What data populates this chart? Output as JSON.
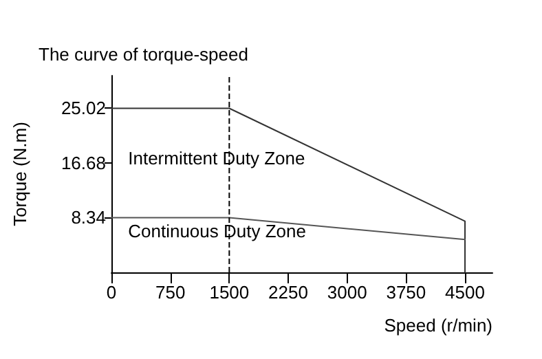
{
  "chart_data": {
    "type": "line",
    "title": "The curve of torque-speed",
    "xlabel": "Speed (r/min)",
    "ylabel": "Torque (N.m)",
    "series": [
      {
        "x": [
          0,
          1500,
          4500,
          4500
        ],
        "values": [
          25.02,
          25.02,
          7.8,
          0
        ],
        "color": "#333333"
      },
      {
        "x": [
          0,
          1500,
          4500
        ],
        "values": [
          8.34,
          8.34,
          5.0
        ],
        "color": "#555555"
      }
    ],
    "ref_lines": [
      {
        "axis": "x",
        "value": 1500,
        "color": "#000000",
        "line_style": "dashed"
      }
    ],
    "xlim": [
      0,
      4850
    ],
    "xticks": [
      0,
      750,
      1500,
      2250,
      3000,
      3750,
      4500
    ],
    "ylim": [
      0,
      30
    ],
    "yticks": [
      8.34,
      16.68,
      25.02
    ],
    "annotations": [
      "Intermittent Duty Zone",
      "Continuous Duty Zone"
    ],
    "grid": false,
    "marker": "none",
    "line_style": "solid"
  }
}
